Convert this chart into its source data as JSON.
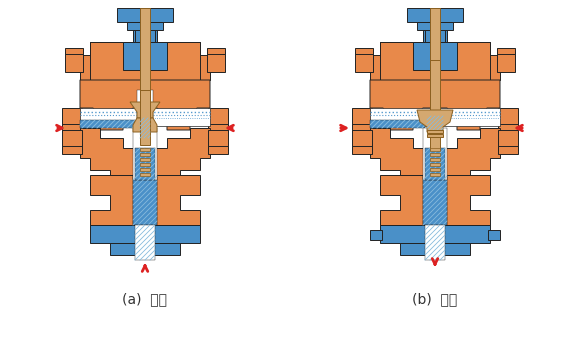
{
  "label_a": "(a)  分流",
  "label_b": "(b)  合流",
  "orange_color": "#E8894A",
  "blue_color": "#4A90C8",
  "tan_color": "#D4A870",
  "white_color": "#FFFFFF",
  "red_color": "#DD2222",
  "bg_color": "#FFFFFF",
  "fig_width": 5.82,
  "fig_height": 3.42,
  "dpi": 100
}
